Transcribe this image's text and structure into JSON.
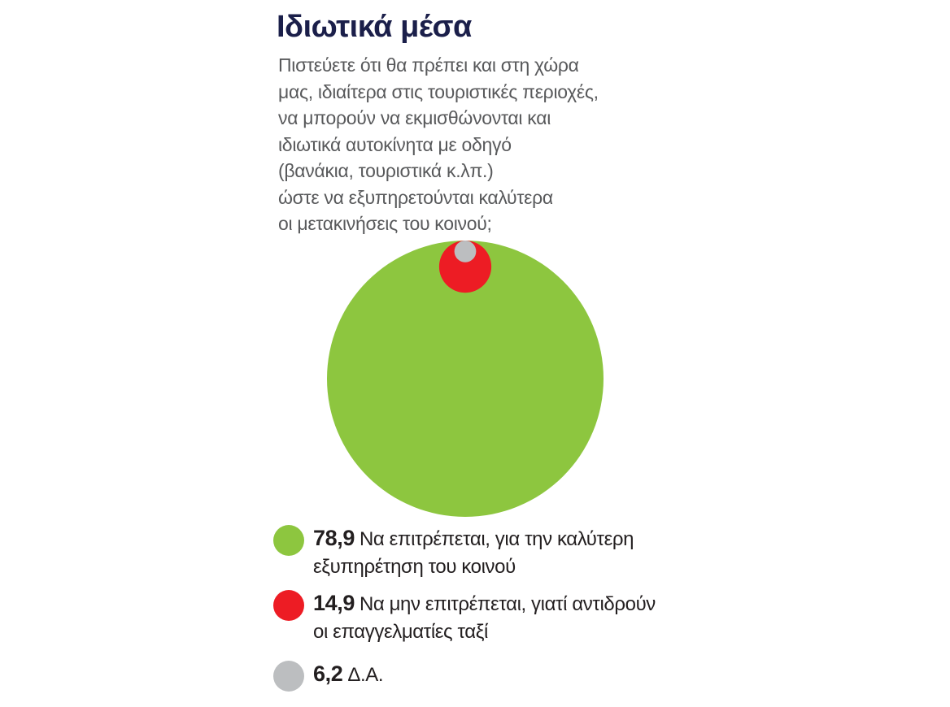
{
  "chart_data": {
    "type": "bubble",
    "title": "Ιδιωτικά μέσα",
    "subtitle": [
      "Πιστεύετε ότι θα πρέπει και στη χώρα",
      "μας, ιδιαίτερα στις τουριστικές περιοχές,",
      "να μπορούν να εκμισθώνονται και",
      "ιδιωτικά αυτοκίνητα με οδηγό",
      "(βανάκια, τουριστικά κ.λπ.)",
      "ώστε να εξυπηρετούνται καλύτερα",
      "οι μετακινήσεις του κοινού;"
    ],
    "categories": [
      "Να επιτρέπεται, για την καλύτερη εξυπηρέτηση του κοινού",
      "Να μην επιτρέπεται, γιατί αντιδρούν οι επαγγελματίες ταξί",
      "Δ.Α."
    ],
    "values": [
      78.9,
      14.9,
      6.2
    ],
    "value_labels": [
      "78,9",
      "14,9",
      "6,2"
    ],
    "colors": [
      "#8dc63f",
      "#ed1c24",
      "#bcbec0"
    ]
  }
}
